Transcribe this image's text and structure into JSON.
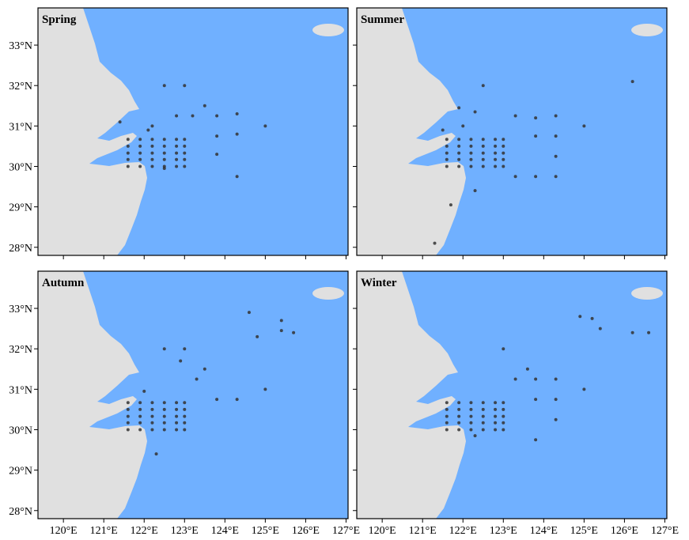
{
  "x_axis": {
    "xlim": [
      119.37,
      127.05
    ],
    "xticks": [
      {
        "value": 120,
        "label": "120°E"
      },
      {
        "value": 121,
        "label": "121°E"
      },
      {
        "value": 122,
        "label": "122°E"
      },
      {
        "value": 123,
        "label": "123°E"
      },
      {
        "value": 124,
        "label": "124°E"
      },
      {
        "value": 125,
        "label": "125°E"
      },
      {
        "value": 126,
        "label": "126°E"
      },
      {
        "value": 127,
        "label": "127°E"
      }
    ]
  },
  "y_axis": {
    "ylim": [
      27.8,
      33.92
    ],
    "yticks": [
      {
        "value": 28,
        "label": "28°N"
      },
      {
        "value": 29,
        "label": "29°N"
      },
      {
        "value": 30,
        "label": "30°N"
      },
      {
        "value": 31,
        "label": "31°N"
      },
      {
        "value": 32,
        "label": "32°N"
      },
      {
        "value": 33,
        "label": "33°N"
      }
    ]
  },
  "panels": [
    {
      "title": "Spring",
      "points": [
        [
          121.6,
          30.0
        ],
        [
          121.9,
          30.0
        ],
        [
          122.2,
          30.0
        ],
        [
          122.5,
          30.0
        ],
        [
          122.8,
          30.0
        ],
        [
          123.0,
          30.0
        ],
        [
          121.6,
          30.17
        ],
        [
          121.9,
          30.17
        ],
        [
          122.2,
          30.17
        ],
        [
          122.5,
          30.17
        ],
        [
          122.8,
          30.17
        ],
        [
          123.0,
          30.17
        ],
        [
          121.6,
          30.33
        ],
        [
          121.9,
          30.33
        ],
        [
          122.2,
          30.33
        ],
        [
          122.5,
          30.33
        ],
        [
          122.8,
          30.33
        ],
        [
          123.0,
          30.33
        ],
        [
          121.6,
          30.5
        ],
        [
          121.9,
          30.5
        ],
        [
          122.2,
          30.5
        ],
        [
          122.5,
          30.5
        ],
        [
          122.8,
          30.5
        ],
        [
          123.0,
          30.5
        ],
        [
          121.6,
          30.67
        ],
        [
          121.9,
          30.67
        ],
        [
          122.2,
          30.67
        ],
        [
          122.5,
          30.67
        ],
        [
          122.8,
          30.67
        ],
        [
          123.0,
          30.67
        ],
        [
          122.5,
          32.0
        ],
        [
          123.0,
          32.0
        ],
        [
          123.5,
          31.5
        ],
        [
          123.2,
          31.25
        ],
        [
          123.8,
          31.25
        ],
        [
          124.3,
          31.3
        ],
        [
          125.0,
          31.0
        ],
        [
          124.3,
          30.8
        ],
        [
          123.8,
          30.75
        ],
        [
          123.8,
          30.3
        ],
        [
          124.3,
          29.75
        ],
        [
          122.2,
          31.0
        ],
        [
          122.1,
          30.9
        ],
        [
          121.4,
          31.1
        ],
        [
          122.5,
          29.95
        ],
        [
          122.8,
          31.25
        ]
      ]
    },
    {
      "title": "Summer",
      "points": [
        [
          121.6,
          30.0
        ],
        [
          121.9,
          30.0
        ],
        [
          122.2,
          30.0
        ],
        [
          122.5,
          30.0
        ],
        [
          122.8,
          30.0
        ],
        [
          123.0,
          30.0
        ],
        [
          121.6,
          30.17
        ],
        [
          121.9,
          30.17
        ],
        [
          122.2,
          30.17
        ],
        [
          122.5,
          30.17
        ],
        [
          122.8,
          30.17
        ],
        [
          123.0,
          30.17
        ],
        [
          121.6,
          30.33
        ],
        [
          121.9,
          30.33
        ],
        [
          122.2,
          30.33
        ],
        [
          122.5,
          30.33
        ],
        [
          122.8,
          30.33
        ],
        [
          123.0,
          30.33
        ],
        [
          121.6,
          30.5
        ],
        [
          121.9,
          30.5
        ],
        [
          122.2,
          30.5
        ],
        [
          122.5,
          30.5
        ],
        [
          122.8,
          30.5
        ],
        [
          123.0,
          30.5
        ],
        [
          121.6,
          30.67
        ],
        [
          121.9,
          30.67
        ],
        [
          122.2,
          30.67
        ],
        [
          122.5,
          30.67
        ],
        [
          122.8,
          30.67
        ],
        [
          123.0,
          30.67
        ],
        [
          122.5,
          32.0
        ],
        [
          126.2,
          32.1
        ],
        [
          121.9,
          31.45
        ],
        [
          122.3,
          31.35
        ],
        [
          123.3,
          31.25
        ],
        [
          123.8,
          31.2
        ],
        [
          124.3,
          31.25
        ],
        [
          125.0,
          31.0
        ],
        [
          124.3,
          30.75
        ],
        [
          123.8,
          30.75
        ],
        [
          124.3,
          30.25
        ],
        [
          123.3,
          29.75
        ],
        [
          123.8,
          29.75
        ],
        [
          124.3,
          29.75
        ],
        [
          122.3,
          29.4
        ],
        [
          121.7,
          29.05
        ],
        [
          121.3,
          28.1
        ],
        [
          121.5,
          30.9
        ],
        [
          122.0,
          31.0
        ]
      ]
    },
    {
      "title": "Autumn",
      "points": [
        [
          121.6,
          30.0
        ],
        [
          121.9,
          30.0
        ],
        [
          122.2,
          30.0
        ],
        [
          122.5,
          30.0
        ],
        [
          122.8,
          30.0
        ],
        [
          123.0,
          30.0
        ],
        [
          121.6,
          30.17
        ],
        [
          121.9,
          30.17
        ],
        [
          122.2,
          30.17
        ],
        [
          122.5,
          30.17
        ],
        [
          122.8,
          30.17
        ],
        [
          123.0,
          30.17
        ],
        [
          121.6,
          30.33
        ],
        [
          121.9,
          30.33
        ],
        [
          122.2,
          30.33
        ],
        [
          122.5,
          30.33
        ],
        [
          122.8,
          30.33
        ],
        [
          123.0,
          30.33
        ],
        [
          121.6,
          30.5
        ],
        [
          121.9,
          30.5
        ],
        [
          122.2,
          30.5
        ],
        [
          122.5,
          30.5
        ],
        [
          122.8,
          30.5
        ],
        [
          123.0,
          30.5
        ],
        [
          121.6,
          30.67
        ],
        [
          121.9,
          30.67
        ],
        [
          122.2,
          30.67
        ],
        [
          122.5,
          30.67
        ],
        [
          122.8,
          30.67
        ],
        [
          123.0,
          30.67
        ],
        [
          124.6,
          32.9
        ],
        [
          124.8,
          32.3
        ],
        [
          125.4,
          32.7
        ],
        [
          125.4,
          32.45
        ],
        [
          125.7,
          32.4
        ],
        [
          122.5,
          32.0
        ],
        [
          123.0,
          32.0
        ],
        [
          122.9,
          31.7
        ],
        [
          123.5,
          31.5
        ],
        [
          123.3,
          31.25
        ],
        [
          125.0,
          31.0
        ],
        [
          124.3,
          30.75
        ],
        [
          123.8,
          30.75
        ],
        [
          122.3,
          29.4
        ],
        [
          122.0,
          30.95
        ]
      ]
    },
    {
      "title": "Winter",
      "points": [
        [
          121.6,
          30.0
        ],
        [
          121.9,
          30.0
        ],
        [
          122.2,
          30.0
        ],
        [
          122.5,
          30.0
        ],
        [
          122.8,
          30.0
        ],
        [
          123.0,
          30.0
        ],
        [
          121.6,
          30.17
        ],
        [
          121.9,
          30.17
        ],
        [
          122.2,
          30.17
        ],
        [
          122.5,
          30.17
        ],
        [
          122.8,
          30.17
        ],
        [
          123.0,
          30.17
        ],
        [
          121.6,
          30.33
        ],
        [
          121.9,
          30.33
        ],
        [
          122.2,
          30.33
        ],
        [
          122.5,
          30.33
        ],
        [
          122.8,
          30.33
        ],
        [
          123.0,
          30.33
        ],
        [
          121.6,
          30.5
        ],
        [
          121.9,
          30.5
        ],
        [
          122.2,
          30.5
        ],
        [
          122.5,
          30.5
        ],
        [
          122.8,
          30.5
        ],
        [
          123.0,
          30.5
        ],
        [
          121.6,
          30.67
        ],
        [
          121.9,
          30.67
        ],
        [
          122.2,
          30.67
        ],
        [
          122.5,
          30.67
        ],
        [
          122.8,
          30.67
        ],
        [
          123.0,
          30.67
        ],
        [
          124.9,
          32.8
        ],
        [
          125.2,
          32.75
        ],
        [
          125.4,
          32.5
        ],
        [
          126.2,
          32.4
        ],
        [
          126.6,
          32.4
        ],
        [
          123.0,
          32.0
        ],
        [
          123.6,
          31.5
        ],
        [
          123.3,
          31.25
        ],
        [
          123.8,
          31.25
        ],
        [
          124.3,
          31.25
        ],
        [
          125.0,
          31.0
        ],
        [
          124.3,
          30.75
        ],
        [
          123.8,
          30.75
        ],
        [
          124.3,
          30.25
        ],
        [
          123.8,
          29.75
        ],
        [
          122.3,
          29.85
        ]
      ]
    }
  ]
}
